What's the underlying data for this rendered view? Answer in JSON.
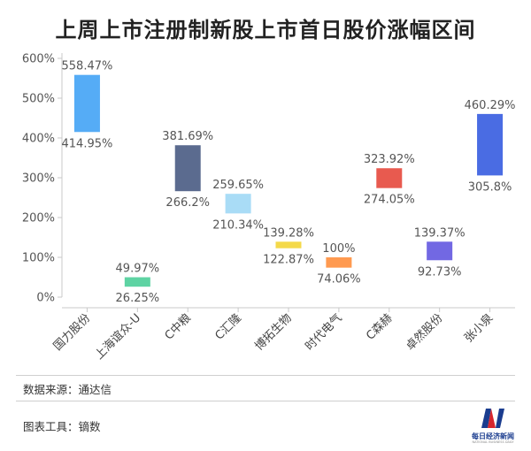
{
  "title": "上周上市注册制新股上市首日股价涨幅区间",
  "source_label": "数据来源：通达信",
  "tool_label": "图表工具：镝数",
  "logo_text": "每日经济新闻",
  "logo_sub": "NATIONAL BUSINESS DAILY",
  "chart_data": {
    "type": "bar",
    "subtype": "floating-range",
    "categories": [
      "国力股份",
      "上海谊众-U",
      "C中粮",
      "C汇隆",
      "博拓生物",
      "时代电气",
      "C森赫",
      "卓然股份",
      "张小泉"
    ],
    "series": [
      {
        "low": [
          414.95,
          26.25,
          266.2,
          210.34,
          122.87,
          74.06,
          274.05,
          92.73,
          305.8
        ],
        "high": [
          558.47,
          49.97,
          381.69,
          259.65,
          139.28,
          100,
          323.92,
          139.37,
          460.29
        ],
        "low_labels": [
          "414.95%",
          "26.25%",
          "266.2%",
          "210.34%",
          "122.87%",
          "74.06%",
          "274.05%",
          "92.73%",
          "305.8%"
        ],
        "high_labels": [
          "558.47%",
          "49.97%",
          "381.69%",
          "259.65%",
          "139.28%",
          "100%",
          "323.92%",
          "139.37%",
          "460.29%"
        ],
        "colors": [
          "#55acf6",
          "#5ed3a3",
          "#5b6b8f",
          "#a9dcf6",
          "#f4d94a",
          "#ff9a50",
          "#e85a4f",
          "#7268e3",
          "#4a6ce3"
        ]
      }
    ],
    "yticks": [
      0,
      100,
      200,
      300,
      400,
      500,
      600
    ],
    "ytick_labels": [
      "0%",
      "100%",
      "200%",
      "300%",
      "400%",
      "500%",
      "600%"
    ],
    "ylim": [
      0,
      600
    ],
    "grid": false,
    "legend": "none"
  }
}
